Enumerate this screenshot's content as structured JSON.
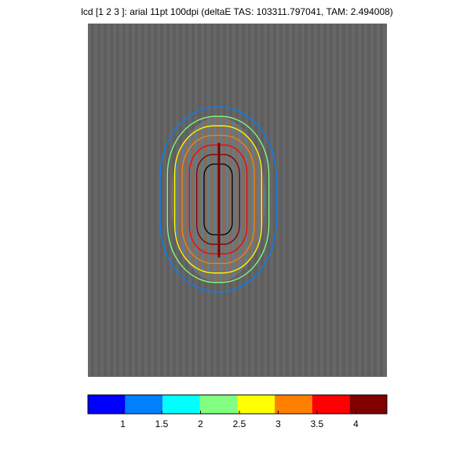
{
  "chart_data": {
    "type": "contour",
    "title": "lcd [1 2 3 ]: arial 11pt 100dpi (deltaE TAS: 103311.797041, TAM: 2.494008)",
    "levels": [
      1.5,
      2,
      2.5,
      3,
      3.5,
      4,
      4.5
    ],
    "colorbar": {
      "clim": [
        0.55,
        4.4
      ],
      "colors": [
        "#0000ff",
        "#0080ff",
        "#00ffff",
        "#80ff80",
        "#ffff00",
        "#ff8000",
        "#ff0000",
        "#800000"
      ],
      "ticks": [
        1,
        1.5,
        2,
        2.5,
        3,
        3.5,
        4
      ]
    }
  }
}
